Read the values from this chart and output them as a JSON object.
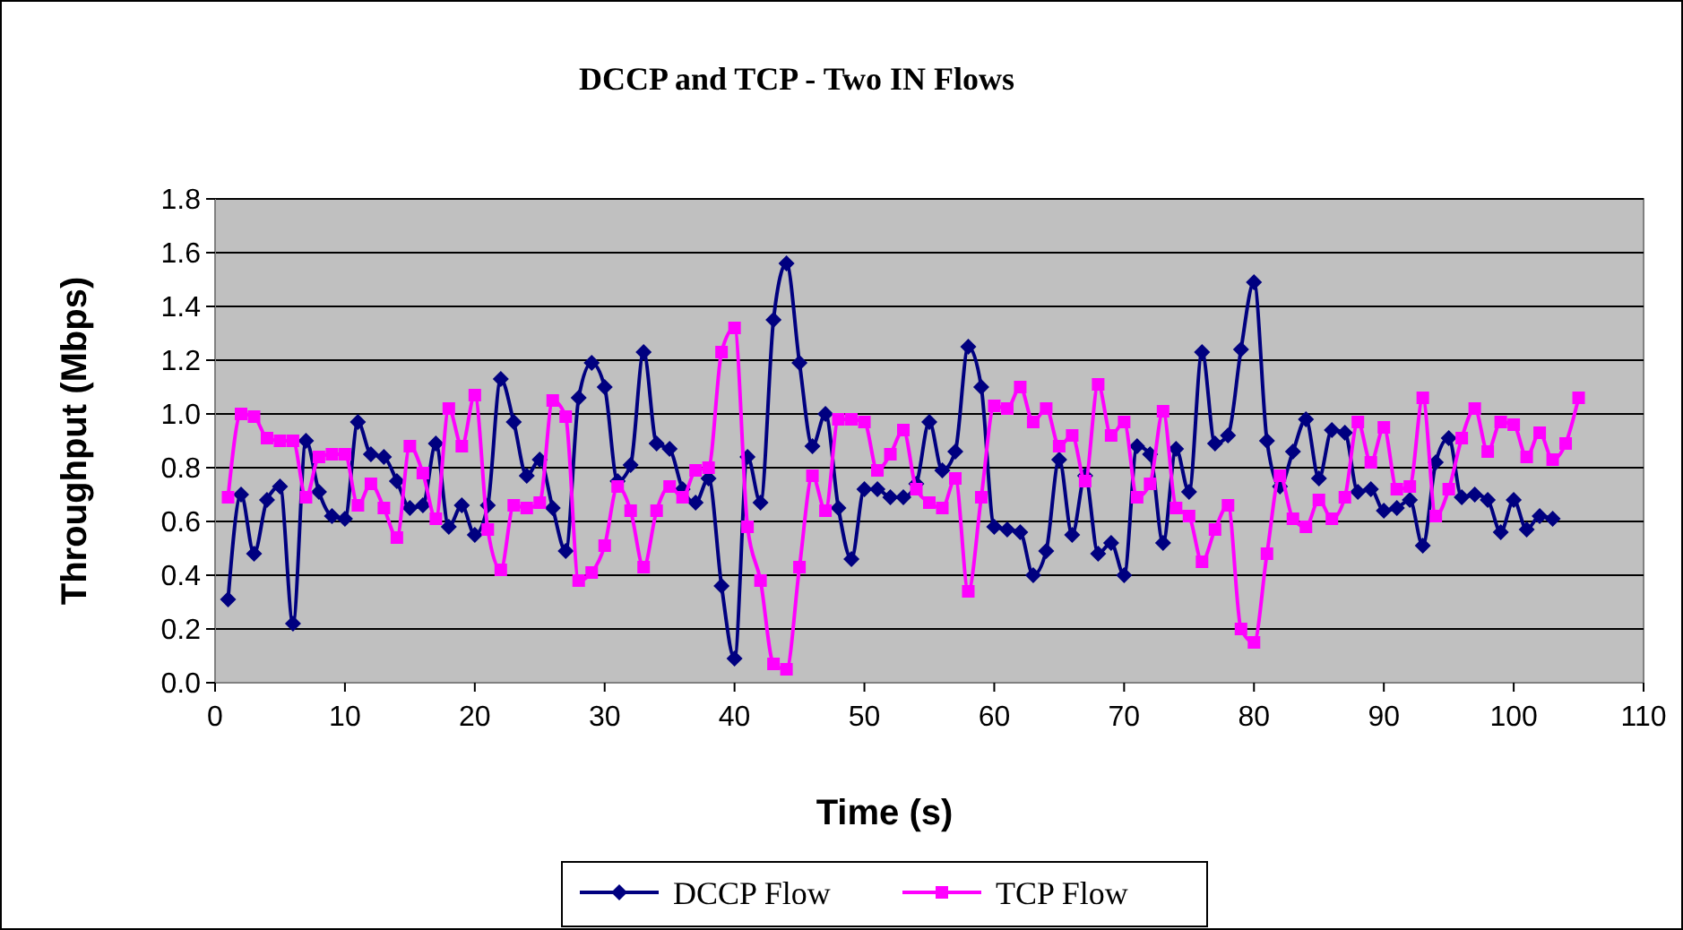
{
  "chart_data": {
    "type": "line",
    "title": "DCCP and TCP - Two IN Flows",
    "xlabel": "Time (s)",
    "ylabel": "Throughput (Mbps)",
    "xlim": [
      0,
      110
    ],
    "xticks": [
      0,
      10,
      20,
      30,
      40,
      50,
      60,
      70,
      80,
      90,
      100,
      110
    ],
    "ylim": [
      0,
      1.8
    ],
    "yticks": [
      {
        "value": 0,
        "label": "0.0"
      },
      {
        "value": 0.2,
        "label": "0.2"
      },
      {
        "value": 0.4,
        "label": "0.4"
      },
      {
        "value": 0.6,
        "label": "0.6"
      },
      {
        "value": 0.8,
        "label": "0.8"
      },
      {
        "value": 1,
        "label": "1.0"
      },
      {
        "value": 1.2,
        "label": "1.2"
      },
      {
        "value": 1.4,
        "label": "1.4"
      },
      {
        "value": 1.6,
        "label": "1.6"
      },
      {
        "value": 1.8,
        "label": "1.8"
      }
    ],
    "grid": "y",
    "legend": "bottom",
    "line_style": "solid",
    "series": [
      {
        "name": "DCCP Flow",
        "color": "#000080",
        "marker": "diamond",
        "x": [
          1,
          2,
          3,
          4,
          5,
          6,
          7,
          8,
          9,
          10,
          11,
          12,
          13,
          14,
          15,
          16,
          17,
          18,
          19,
          20,
          21,
          22,
          23,
          24,
          25,
          26,
          27,
          28,
          29,
          30,
          31,
          32,
          33,
          34,
          35,
          36,
          37,
          38,
          39,
          40,
          41,
          42,
          43,
          44,
          45,
          46,
          47,
          48,
          49,
          50,
          51,
          52,
          53,
          54,
          55,
          56,
          57,
          58,
          59,
          60,
          61,
          62,
          63,
          64,
          65,
          66,
          67,
          68,
          69,
          70,
          71,
          72,
          73,
          74,
          75,
          76,
          77,
          78,
          79,
          80,
          81,
          82,
          83,
          84,
          85,
          86,
          87,
          88,
          89,
          90,
          91,
          92,
          93,
          94,
          95,
          96,
          97,
          98,
          99,
          100,
          101,
          102,
          103
        ],
        "values": [
          0.31,
          0.7,
          0.48,
          0.68,
          0.73,
          0.22,
          0.9,
          0.71,
          0.62,
          0.61,
          0.97,
          0.85,
          0.84,
          0.75,
          0.65,
          0.66,
          0.89,
          0.58,
          0.66,
          0.55,
          0.66,
          1.13,
          0.97,
          0.77,
          0.83,
          0.65,
          0.49,
          1.06,
          1.19,
          1.1,
          0.75,
          0.81,
          1.23,
          0.89,
          0.87,
          0.72,
          0.67,
          0.76,
          0.36,
          0.09,
          0.84,
          0.67,
          1.35,
          1.56,
          1.19,
          0.88,
          1.0,
          0.65,
          0.46,
          0.72,
          0.72,
          0.69,
          0.69,
          0.74,
          0.97,
          0.79,
          0.86,
          1.25,
          1.1,
          0.58,
          0.57,
          0.56,
          0.4,
          0.49,
          0.83,
          0.55,
          0.77,
          0.48,
          0.52,
          0.4,
          0.88,
          0.85,
          0.52,
          0.87,
          0.71,
          1.23,
          0.89,
          0.92,
          1.24,
          1.49,
          0.9,
          0.73,
          0.86,
          0.98,
          0.76,
          0.94,
          0.93,
          0.71,
          0.72,
          0.64,
          0.65,
          0.68,
          0.51,
          0.82,
          0.91,
          0.69,
          0.7,
          0.68,
          0.56,
          0.68,
          0.57,
          0.62,
          0.61
        ]
      },
      {
        "name": "TCP Flow",
        "color": "#ff00ff",
        "marker": "square",
        "x": [
          1,
          2,
          3,
          4,
          5,
          6,
          7,
          8,
          9,
          10,
          11,
          12,
          13,
          14,
          15,
          16,
          17,
          18,
          19,
          20,
          21,
          22,
          23,
          24,
          25,
          26,
          27,
          28,
          29,
          30,
          31,
          32,
          33,
          34,
          35,
          36,
          37,
          38,
          39,
          40,
          41,
          42,
          43,
          44,
          45,
          46,
          47,
          48,
          49,
          50,
          51,
          52,
          53,
          54,
          55,
          56,
          57,
          58,
          59,
          60,
          61,
          62,
          63,
          64,
          65,
          66,
          67,
          68,
          69,
          70,
          71,
          72,
          73,
          74,
          75,
          76,
          77,
          78,
          79,
          80,
          81,
          82,
          83,
          84,
          85,
          86,
          87,
          88,
          89,
          90,
          91,
          92,
          93,
          94,
          95,
          96,
          97,
          98,
          99,
          100,
          101,
          102,
          103,
          104,
          105
        ],
        "values": [
          0.69,
          1.0,
          0.99,
          0.91,
          0.9,
          0.9,
          0.69,
          0.84,
          0.85,
          0.85,
          0.66,
          0.74,
          0.65,
          0.54,
          0.88,
          0.78,
          0.61,
          1.02,
          0.88,
          1.07,
          0.57,
          0.42,
          0.66,
          0.65,
          0.67,
          1.05,
          0.99,
          0.38,
          0.41,
          0.51,
          0.73,
          0.64,
          0.43,
          0.64,
          0.73,
          0.69,
          0.79,
          0.8,
          1.23,
          1.32,
          0.58,
          0.38,
          0.07,
          0.05,
          0.43,
          0.77,
          0.64,
          0.98,
          0.98,
          0.97,
          0.79,
          0.85,
          0.94,
          0.72,
          0.67,
          0.65,
          0.76,
          0.34,
          0.69,
          1.03,
          1.02,
          1.1,
          0.97,
          1.02,
          0.88,
          0.92,
          0.75,
          1.11,
          0.92,
          0.97,
          0.69,
          0.74,
          1.01,
          0.65,
          0.62,
          0.45,
          0.57,
          0.66,
          0.2,
          0.15,
          0.48,
          0.77,
          0.61,
          0.58,
          0.68,
          0.61,
          0.69,
          0.97,
          0.82,
          0.95,
          0.72,
          0.73,
          1.06,
          0.62,
          0.72,
          0.91,
          1.02,
          0.86,
          0.97,
          0.96,
          0.84,
          0.93,
          0.83,
          0.89,
          1.06
        ]
      }
    ]
  }
}
